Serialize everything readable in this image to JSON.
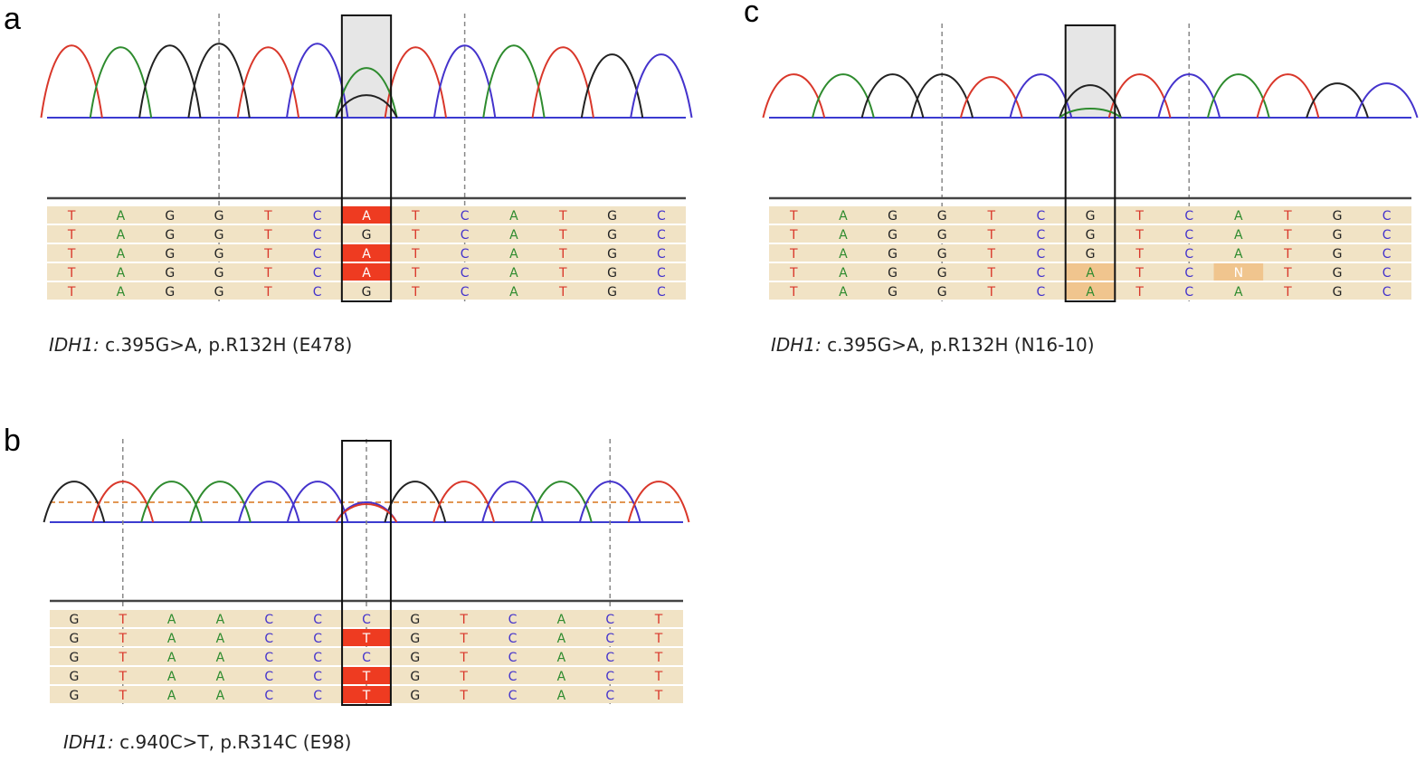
{
  "colors": {
    "A": "#2e8b2e",
    "G": "#222222",
    "T": "#d9372a",
    "C": "#4433cc",
    "N": "#ffffff",
    "row_bg": "#f1e3c5",
    "highlight_mutation": "#ee3b21",
    "highlight_ambiguous": "#f0c58e",
    "window_fill": "#e6e6e6"
  },
  "panels": [
    {
      "letter": "a",
      "caption_gene": "IDH1:",
      "caption_text": " c.395G>A,  p.R132H (E478)",
      "trace_bases": [
        "T",
        "A",
        "G",
        "G",
        "T",
        "C",
        "A",
        "T",
        "C",
        "A",
        "T",
        "G",
        "C"
      ],
      "trace_heights": [
        80,
        78,
        80,
        82,
        78,
        82,
        0,
        78,
        80,
        80,
        78,
        70,
        70
      ],
      "mixed_peaks": [
        {
          "base": "A",
          "height": 55
        },
        {
          "base": "G",
          "height": 25
        }
      ],
      "window_index": 6,
      "window_shaded": true,
      "dashed_verticals": [
        3,
        8
      ],
      "threshold_line": false,
      "rows": [
        [
          "T",
          "A",
          "G",
          "G",
          "T",
          "C",
          "A",
          "T",
          "C",
          "A",
          "T",
          "G",
          "C"
        ],
        [
          "T",
          "A",
          "G",
          "G",
          "T",
          "C",
          "G",
          "T",
          "C",
          "A",
          "T",
          "G",
          "C"
        ],
        [
          "T",
          "A",
          "G",
          "G",
          "T",
          "C",
          "A",
          "T",
          "C",
          "A",
          "T",
          "G",
          "C"
        ],
        [
          "T",
          "A",
          "G",
          "G",
          "T",
          "C",
          "A",
          "T",
          "C",
          "A",
          "T",
          "G",
          "C"
        ],
        [
          "T",
          "A",
          "G",
          "G",
          "T",
          "C",
          "G",
          "T",
          "C",
          "A",
          "T",
          "G",
          "C"
        ]
      ],
      "highlights": [
        {
          "row": 0,
          "col": 6,
          "type": "mutation"
        },
        {
          "row": 2,
          "col": 6,
          "type": "mutation"
        },
        {
          "row": 3,
          "col": 6,
          "type": "mutation"
        }
      ]
    },
    {
      "letter": "b",
      "caption_gene": "IDH1:",
      "caption_text": " c.940C>T,  p.R314C (E98)",
      "trace_bases": [
        "G",
        "T",
        "A",
        "A",
        "C",
        "C",
        "C",
        "G",
        "T",
        "C",
        "A",
        "C",
        "T"
      ],
      "trace_heights": [
        45,
        45,
        45,
        45,
        45,
        45,
        0,
        45,
        45,
        45,
        45,
        45,
        45
      ],
      "mixed_peaks": [
        {
          "base": "C",
          "height": 22
        },
        {
          "base": "T",
          "height": 20
        }
      ],
      "window_index": 6,
      "window_shaded": false,
      "dashed_verticals": [
        1,
        6,
        11
      ],
      "threshold_line": true,
      "rows": [
        [
          "G",
          "T",
          "A",
          "A",
          "C",
          "C",
          "C",
          "G",
          "T",
          "C",
          "A",
          "C",
          "T"
        ],
        [
          "G",
          "T",
          "A",
          "A",
          "C",
          "C",
          "T",
          "G",
          "T",
          "C",
          "A",
          "C",
          "T"
        ],
        [
          "G",
          "T",
          "A",
          "A",
          "C",
          "C",
          "C",
          "G",
          "T",
          "C",
          "A",
          "C",
          "T"
        ],
        [
          "G",
          "T",
          "A",
          "A",
          "C",
          "C",
          "T",
          "G",
          "T",
          "C",
          "A",
          "C",
          "T"
        ],
        [
          "G",
          "T",
          "A",
          "A",
          "C",
          "C",
          "T",
          "G",
          "T",
          "C",
          "A",
          "C",
          "T"
        ]
      ],
      "highlights": [
        {
          "row": 1,
          "col": 6,
          "type": "mutation"
        },
        {
          "row": 3,
          "col": 6,
          "type": "mutation"
        },
        {
          "row": 4,
          "col": 6,
          "type": "mutation"
        }
      ]
    },
    {
      "letter": "c",
      "caption_gene": "IDH1:",
      "caption_text": " c.395G>A,  p.R132H (N16-10)",
      "trace_bases": [
        "T",
        "A",
        "G",
        "G",
        "T",
        "C",
        "G",
        "T",
        "C",
        "A",
        "T",
        "G",
        "C"
      ],
      "trace_heights": [
        48,
        48,
        48,
        48,
        45,
        48,
        0,
        48,
        48,
        48,
        48,
        38,
        38
      ],
      "mixed_peaks": [
        {
          "base": "G",
          "height": 36
        },
        {
          "base": "A",
          "height": 10
        }
      ],
      "window_index": 6,
      "window_shaded": true,
      "dashed_verticals": [
        3,
        8
      ],
      "threshold_line": false,
      "rows": [
        [
          "T",
          "A",
          "G",
          "G",
          "T",
          "C",
          "G",
          "T",
          "C",
          "A",
          "T",
          "G",
          "C"
        ],
        [
          "T",
          "A",
          "G",
          "G",
          "T",
          "C",
          "G",
          "T",
          "C",
          "A",
          "T",
          "G",
          "C"
        ],
        [
          "T",
          "A",
          "G",
          "G",
          "T",
          "C",
          "G",
          "T",
          "C",
          "A",
          "T",
          "G",
          "C"
        ],
        [
          "T",
          "A",
          "G",
          "G",
          "T",
          "C",
          "A",
          "T",
          "C",
          "N",
          "T",
          "G",
          "C"
        ],
        [
          "T",
          "A",
          "G",
          "G",
          "T",
          "C",
          "A",
          "T",
          "C",
          "A",
          "T",
          "G",
          "C"
        ]
      ],
      "highlights": [
        {
          "row": 3,
          "col": 6,
          "type": "ambiguous"
        },
        {
          "row": 4,
          "col": 6,
          "type": "ambiguous"
        },
        {
          "row": 3,
          "col": 9,
          "type": "ambiguous"
        }
      ]
    }
  ]
}
